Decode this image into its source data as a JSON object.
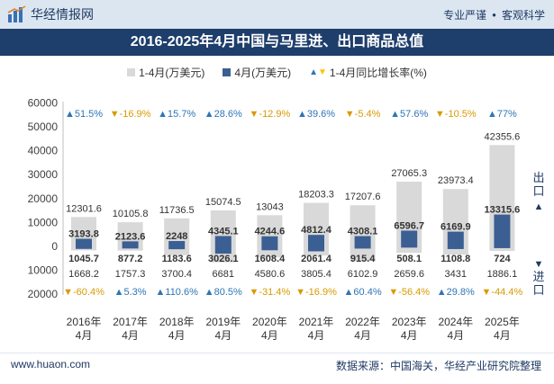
{
  "header": {
    "brand": "华经情报网",
    "tagline_1": "专业严谨",
    "tagline_2": "客观科学",
    "title": "2016-2025年4月中国与马里进、出口商品总值"
  },
  "legend": {
    "cumulative": "1-4月(万美元)",
    "monthly": "4月(万美元)",
    "growth": "1-4月同比增长率(%)"
  },
  "side_labels": {
    "export_text": "出口",
    "import_text": "进口"
  },
  "footer": {
    "website": "www.huaon.com",
    "source": "数据来源：中国海关，华经产业研究院整理"
  },
  "colors": {
    "cumulative_bar": "#d9d9d9",
    "monthly_bar": "#3b5f93",
    "growth_up": "#2e75b6",
    "growth_down": "#ffc000",
    "title_bg": "#1e3e6b"
  },
  "chart_data": {
    "type": "bar",
    "title": "2016-2025年4月中国与马里进、出口商品总值",
    "categories": [
      "2016年\n4月",
      "2017年\n4月",
      "2018年\n4月",
      "2019年\n4月",
      "2020年\n4月",
      "2021年\n4月",
      "2022年\n4月",
      "2023年\n4月",
      "2024年\n4月",
      "2025年\n4月"
    ],
    "ylim": [
      -20000,
      60000
    ],
    "yticks": [
      -20000,
      -10000,
      0,
      10000,
      20000,
      30000,
      40000,
      50000,
      60000
    ],
    "ytick_labels": [
      "20000",
      "10000",
      "0",
      "10000",
      "20000",
      "30000",
      "40000",
      "50000",
      "60000"
    ],
    "series": [
      {
        "name": "出口 1-4月(万美元)",
        "values": [
          12301.6,
          10105.8,
          11736.5,
          15074.5,
          13043,
          18203.3,
          17207.6,
          27065.3,
          23973.4,
          42355.6
        ],
        "labels": [
          "12301.6",
          "10105.8",
          "11736.5",
          "15074.5",
          "13043",
          "18203.3",
          "17207.6",
          "27065.3",
          "23973.4",
          "42355.6"
        ]
      },
      {
        "name": "出口 4月(万美元)",
        "values": [
          3193.8,
          2123.6,
          2248,
          4345.1,
          4244.6,
          4812.4,
          4308.1,
          6596.7,
          6169.9,
          13315.6
        ],
        "labels": [
          "3193.8",
          "2123.6",
          "2248",
          "4345.1",
          "4244.6",
          "4812.4",
          "4308.1",
          "6596.7",
          "6169.9",
          "13315.6"
        ]
      },
      {
        "name": "进口 1-4月(万美元)",
        "values": [
          1668.2,
          1757.3,
          3700.4,
          6681,
          4580.6,
          3805.4,
          6102.9,
          2659.6,
          3431,
          1886.1
        ],
        "labels": [
          "1668.2",
          "1757.3",
          "3700.4",
          "6681",
          "4580.6",
          "3805.4",
          "6102.9",
          "2659.6",
          "3431",
          "1886.1"
        ]
      },
      {
        "name": "进口 4月(万美元)",
        "values": [
          1045.7,
          877.2,
          1183.6,
          3026.1,
          1608.4,
          2061.4,
          915.4,
          508.1,
          1108.8,
          724
        ],
        "labels": [
          "1045.7",
          "877.2",
          "1183.6",
          "3026.1",
          "1608.4",
          "2061.4",
          "915.4",
          "508.1",
          "1108.8",
          "724"
        ]
      },
      {
        "name": "出口 1-4月同比增长率(%)",
        "values": [
          51.5,
          -16.9,
          15.7,
          28.6,
          -12.9,
          39.6,
          -5.4,
          57.6,
          -10.5,
          77
        ],
        "labels": [
          "51.5%",
          "-16.9%",
          "15.7%",
          "28.6%",
          "-12.9%",
          "39.6%",
          "-5.4%",
          "57.6%",
          "-10.5%",
          "77%"
        ]
      },
      {
        "name": "进口 1-4月同比增长率(%)",
        "values": [
          -60.4,
          5.3,
          110.6,
          80.5,
          -31.4,
          -16.9,
          60.4,
          -56.4,
          29.8,
          -44.4
        ],
        "labels": [
          "-60.4%",
          "5.3%",
          "110.6%",
          "80.5%",
          "-31.4%",
          "-16.9%",
          "60.4%",
          "-56.4%",
          "29.8%",
          "-44.4%"
        ]
      }
    ],
    "legend_position": "top-center",
    "grid": false
  }
}
